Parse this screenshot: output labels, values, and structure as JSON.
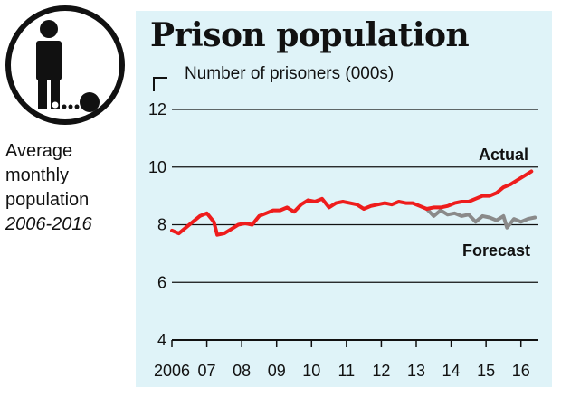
{
  "title": "Prison population",
  "ylabel": "Number of prisoners (000s)",
  "subtitle": {
    "line1": "Average",
    "line2": "monthly",
    "line3": "population",
    "line4": "2006-2016"
  },
  "icon": "prisoner-ball-and-chain-icon",
  "colors": {
    "actual": "#ee1c1c",
    "forecast": "#8a8a8a",
    "panel": "#dff3f8"
  },
  "chart_data": {
    "type": "line",
    "x_tick_labels": [
      "2006",
      "07",
      "08",
      "09",
      "10",
      "11",
      "12",
      "13",
      "14",
      "15",
      "16"
    ],
    "x_tick_years": [
      2006,
      2007,
      2008,
      2009,
      2010,
      2011,
      2012,
      2013,
      2014,
      2015,
      2016
    ],
    "y_ticks": [
      4,
      6,
      8,
      10,
      12
    ],
    "xlim": [
      2006,
      2016.5
    ],
    "ylim": [
      4,
      12
    ],
    "grid": true,
    "series": [
      {
        "name": "Actual",
        "x": [
          2006.0,
          2006.2,
          2006.4,
          2006.6,
          2006.8,
          2007.0,
          2007.2,
          2007.3,
          2007.5,
          2007.7,
          2007.9,
          2008.1,
          2008.3,
          2008.5,
          2008.7,
          2008.9,
          2009.1,
          2009.3,
          2009.5,
          2009.7,
          2009.9,
          2010.1,
          2010.3,
          2010.5,
          2010.7,
          2010.9,
          2011.1,
          2011.3,
          2011.5,
          2011.7,
          2011.9,
          2012.1,
          2012.3,
          2012.5,
          2012.7,
          2012.9,
          2013.1,
          2013.3,
          2013.5,
          2013.7,
          2013.9,
          2014.1,
          2014.3,
          2014.5,
          2014.7,
          2014.9,
          2015.1,
          2015.3,
          2015.5,
          2015.7,
          2015.9,
          2016.1,
          2016.3
        ],
        "y": [
          7.8,
          7.7,
          7.9,
          8.1,
          8.3,
          8.4,
          8.1,
          7.65,
          7.7,
          7.85,
          8.0,
          8.05,
          8.0,
          8.3,
          8.4,
          8.5,
          8.5,
          8.6,
          8.45,
          8.7,
          8.85,
          8.8,
          8.9,
          8.6,
          8.75,
          8.8,
          8.75,
          8.7,
          8.55,
          8.65,
          8.7,
          8.75,
          8.7,
          8.8,
          8.75,
          8.75,
          8.65,
          8.55,
          8.6,
          8.6,
          8.65,
          8.75,
          8.8,
          8.8,
          8.9,
          9.0,
          9.0,
          9.1,
          9.3,
          9.4,
          9.55,
          9.7,
          9.85
        ]
      },
      {
        "name": "Forecast",
        "x": [
          2013.3,
          2013.5,
          2013.7,
          2013.9,
          2014.1,
          2014.3,
          2014.5,
          2014.7,
          2014.9,
          2015.1,
          2015.3,
          2015.5,
          2015.6,
          2015.8,
          2016.0,
          2016.2,
          2016.4
        ],
        "y": [
          8.55,
          8.3,
          8.5,
          8.35,
          8.4,
          8.3,
          8.35,
          8.1,
          8.3,
          8.25,
          8.15,
          8.3,
          7.9,
          8.2,
          8.1,
          8.2,
          8.25
        ]
      }
    ]
  }
}
